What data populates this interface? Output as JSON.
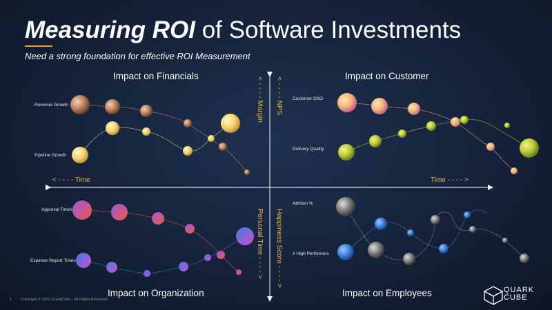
{
  "header": {
    "title_emphasis": "Measuring ROI",
    "title_rest": " of Software Investments",
    "subtitle": "Need a strong foundation for effective ROI Measurement"
  },
  "quadrants": {
    "financials": {
      "title": "Impact on Financials",
      "series1": "Revenue Growth",
      "series2": "Pipeline Growth"
    },
    "customer": {
      "title": "Impact on Customer",
      "series1": "Customer DSO",
      "series2": "Delivery Quality"
    },
    "organization": {
      "title": "Impact on Organization",
      "series1": "Approval Times",
      "series2": "Expense Report Times"
    },
    "employees": {
      "title": "Impact on Employees",
      "series1": "Attrition %",
      "series2": "# High Performers"
    }
  },
  "axes": {
    "time_left": "< - - - -  Time",
    "time_right": "Time  - - - - >",
    "margin": "< - - - -  Margin",
    "nps": "< - - - -  NPS",
    "personal_time": "Personal Time - - - - >",
    "happiness": "Happiness Score - - - - >"
  },
  "footer": {
    "page": "1",
    "copyright": "Copyright © 2021 QuarkCube - All Rights Reserved"
  },
  "logo": {
    "line1": "QUARK",
    "line2": "CUBE"
  },
  "colors": {
    "accent": "#f2b43c",
    "background": "#15223a",
    "bronze": "#c98b63",
    "gold": "#f7d870",
    "olive": "#b8c92e",
    "pink_orange": "#e85a5a",
    "purple_blue": "#7e5fd6",
    "blue": "#3f7fd0",
    "gray": "#8a8a8a"
  }
}
